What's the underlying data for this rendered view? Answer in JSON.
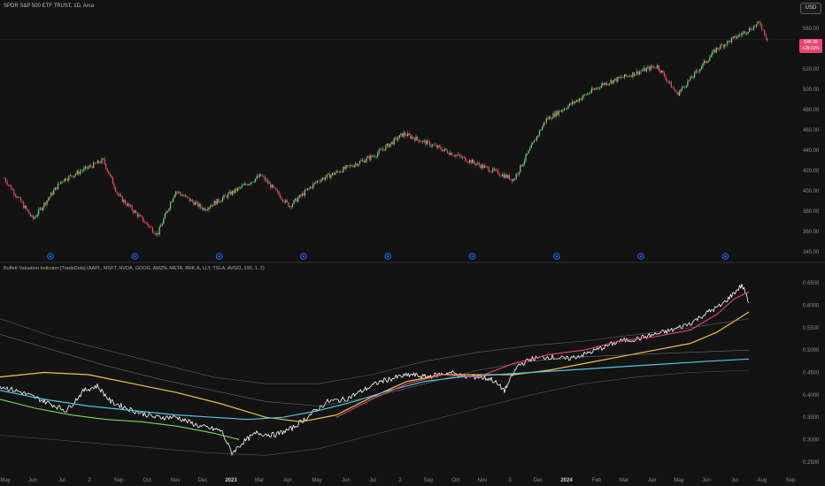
{
  "header": {
    "symbol_title": "SPDR S&P 500 ETF TRUST, 1D, Arca",
    "currency": "USD",
    "last_price": "548.99",
    "last_change": "+28.02%"
  },
  "indicator": {
    "title": "Buffett Valuation Indicator [TradeDots] (AAPL, MSFT, NVDA, GOOG, AMZN, META, BRK.A, LLY, TSLA, AVGO, 100, 1, 2)"
  },
  "colors": {
    "background": "#131313",
    "up_candle": "#7ad27a",
    "down_candle": "#e5536e",
    "ratio_line": "#ffffff",
    "ma_yellow": "#f2c14e",
    "ma_cyan": "#55c3dc",
    "ma_pink": "#e8447a",
    "ma_green": "#7ed957",
    "band_outer": "#7a7a7a",
    "event_marker": "#2962ff"
  },
  "chart_data": [
    {
      "type": "candlestick",
      "title": "SPDR S&P 500 ETF TRUST, 1D, Arca",
      "y_ticks": [
        560,
        540,
        520,
        500,
        480,
        460,
        440,
        420,
        400,
        380,
        360,
        340
      ],
      "ylim": [
        333,
        572
      ],
      "last_price": 548.99,
      "change_label": "+28.02%",
      "event_markers": 9,
      "approx_close_path": [
        {
          "x": "2022-05",
          "y": 412
        },
        {
          "x": "2022-06",
          "y": 372
        },
        {
          "x": "2022-07",
          "y": 410
        },
        {
          "x": "2022-08-15",
          "y": 430
        },
        {
          "x": "2022-09",
          "y": 395
        },
        {
          "x": "2022-10-12",
          "y": 357
        },
        {
          "x": "2022-11",
          "y": 400
        },
        {
          "x": "2022-12",
          "y": 382
        },
        {
          "x": "2023-02",
          "y": 415
        },
        {
          "x": "2023-03",
          "y": 385
        },
        {
          "x": "2023-04",
          "y": 410
        },
        {
          "x": "2023-06",
          "y": 435
        },
        {
          "x": "2023-07",
          "y": 456
        },
        {
          "x": "2023-08",
          "y": 445
        },
        {
          "x": "2023-10-27",
          "y": 411
        },
        {
          "x": "2023-12",
          "y": 470
        },
        {
          "x": "2024-02",
          "y": 505
        },
        {
          "x": "2024-03-28",
          "y": 523
        },
        {
          "x": "2024-04-19",
          "y": 495
        },
        {
          "x": "2024-06",
          "y": 540
        },
        {
          "x": "2024-07-16",
          "y": 565
        },
        {
          "x": "2024-07-24",
          "y": 548.99
        }
      ]
    },
    {
      "type": "line",
      "title": "Buffett Valuation Indicator [TradeDots] (AAPL, MSFT, NVDA, GOOG, AMZN, META, BRK.A, LLY, TSLA, AVGO, 100, 1, 2)",
      "y_ticks": [
        "0.6500",
        "0.6000",
        "0.5500",
        "0.5000",
        "0.4500",
        "0.4000",
        "0.3500",
        "0.3000",
        "0.2500"
      ],
      "ylim": [
        0.23,
        0.67
      ],
      "x_ticks": [
        "May",
        "Jun",
        "Jul",
        "2",
        "Sep",
        "Oct",
        "Nov",
        "Dec",
        "2023",
        "Mar",
        "Apr",
        "May",
        "Jun",
        "Jul",
        "2",
        "Sep",
        "Oct",
        "Nov",
        "3",
        "Dec",
        "2024",
        "Feb",
        "Mar",
        "Apr",
        "May",
        "Jun",
        "Jul",
        "Aug",
        "Sep"
      ],
      "series": [
        {
          "key": "ratio",
          "color": "#ffffff",
          "values": [
            [
              0,
              0.42
            ],
            [
              25,
              0.405
            ],
            [
              45,
              0.39
            ],
            [
              75,
              0.365
            ],
            [
              95,
              0.41
            ],
            [
              110,
              0.42
            ],
            [
              125,
              0.385
            ],
            [
              150,
              0.365
            ],
            [
              175,
              0.35
            ],
            [
              200,
              0.35
            ],
            [
              225,
              0.33
            ],
            [
              250,
              0.32
            ],
            [
              262,
              0.27
            ],
            [
              275,
              0.295
            ],
            [
              290,
              0.315
            ],
            [
              310,
              0.31
            ],
            [
              330,
              0.325
            ],
            [
              350,
              0.355
            ],
            [
              370,
              0.385
            ],
            [
              390,
              0.39
            ],
            [
              410,
              0.41
            ],
            [
              430,
              0.43
            ],
            [
              450,
              0.44
            ],
            [
              465,
              0.445
            ],
            [
              480,
              0.44
            ],
            [
              495,
              0.445
            ],
            [
              510,
              0.45
            ],
            [
              525,
              0.44
            ],
            [
              540,
              0.44
            ],
            [
              555,
              0.435
            ],
            [
              570,
              0.41
            ],
            [
              585,
              0.465
            ],
            [
              600,
              0.48
            ],
            [
              620,
              0.485
            ],
            [
              640,
              0.48
            ],
            [
              660,
              0.49
            ],
            [
              680,
              0.505
            ],
            [
              700,
              0.52
            ],
            [
              720,
              0.525
            ],
            [
              740,
              0.535
            ],
            [
              760,
              0.545
            ],
            [
              780,
              0.56
            ],
            [
              800,
              0.585
            ],
            [
              815,
              0.6
            ],
            [
              828,
              0.625
            ],
            [
              838,
              0.645
            ],
            [
              842,
              0.63
            ],
            [
              846,
              0.605
            ]
          ]
        },
        {
          "key": "ma-yellow",
          "color": "#f2c14e",
          "values": [
            [
              0,
              0.44
            ],
            [
              50,
              0.45
            ],
            [
              100,
              0.445
            ],
            [
              150,
              0.425
            ],
            [
              200,
              0.405
            ],
            [
              250,
              0.38
            ],
            [
              300,
              0.35
            ],
            [
              340,
              0.34
            ],
            [
              380,
              0.355
            ],
            [
              420,
              0.395
            ],
            [
              460,
              0.43
            ],
            [
              500,
              0.445
            ],
            [
              540,
              0.445
            ],
            [
              580,
              0.445
            ],
            [
              620,
              0.455
            ],
            [
              660,
              0.47
            ],
            [
              700,
              0.485
            ],
            [
              740,
              0.5
            ],
            [
              780,
              0.515
            ],
            [
              810,
              0.54
            ],
            [
              830,
              0.565
            ],
            [
              846,
              0.585
            ]
          ]
        },
        {
          "key": "ma-cyan",
          "color": "#55c3dc",
          "values": [
            [
              0,
              0.41
            ],
            [
              50,
              0.39
            ],
            [
              100,
              0.375
            ],
            [
              150,
              0.365
            ],
            [
              200,
              0.355
            ],
            [
              240,
              0.35
            ],
            [
              280,
              0.345
            ],
            [
              320,
              0.35
            ],
            [
              360,
              0.365
            ],
            [
              400,
              0.385
            ],
            [
              440,
              0.41
            ],
            [
              480,
              0.43
            ],
            [
              520,
              0.44
            ],
            [
              560,
              0.445
            ],
            [
              600,
              0.45
            ],
            [
              640,
              0.455
            ],
            [
              680,
              0.46
            ],
            [
              720,
              0.465
            ],
            [
              760,
              0.47
            ],
            [
              800,
              0.475
            ],
            [
              846,
              0.48
            ]
          ]
        },
        {
          "key": "ma-pink",
          "color": "#e8447a",
          "values": [
            [
              380,
              0.35
            ],
            [
              420,
              0.39
            ],
            [
              460,
              0.425
            ],
            [
              500,
              0.445
            ],
            [
              540,
              0.44
            ],
            [
              580,
              0.47
            ],
            [
              620,
              0.49
            ],
            [
              660,
              0.5
            ],
            [
              700,
              0.52
            ],
            [
              740,
              0.53
            ],
            [
              780,
              0.545
            ],
            [
              810,
              0.58
            ],
            [
              830,
              0.615
            ],
            [
              846,
              0.63
            ]
          ]
        },
        {
          "key": "ma-green",
          "color": "#7ed957",
          "values": [
            [
              0,
              0.39
            ],
            [
              40,
              0.37
            ],
            [
              80,
              0.355
            ],
            [
              120,
              0.345
            ],
            [
              160,
              0.34
            ],
            [
              200,
              0.33
            ],
            [
              240,
              0.315
            ],
            [
              270,
              0.3
            ]
          ]
        },
        {
          "key": "band-upper",
          "color": "#7a7a7a",
          "values": [
            [
              0,
              0.57
            ],
            [
              60,
              0.53
            ],
            [
              120,
              0.5
            ],
            [
              180,
              0.47
            ],
            [
              240,
              0.44
            ],
            [
              300,
              0.425
            ],
            [
              360,
              0.425
            ],
            [
              420,
              0.445
            ],
            [
              480,
              0.475
            ],
            [
              540,
              0.495
            ],
            [
              600,
              0.51
            ],
            [
              660,
              0.52
            ],
            [
              720,
              0.535
            ],
            [
              780,
              0.55
            ],
            [
              846,
              0.57
            ]
          ]
        },
        {
          "key": "band-mid",
          "color": "#8a8a8a",
          "values": [
            [
              0,
              0.535
            ],
            [
              60,
              0.5
            ],
            [
              120,
              0.465
            ],
            [
              180,
              0.435
            ],
            [
              240,
              0.41
            ],
            [
              300,
              0.385
            ],
            [
              360,
              0.375
            ],
            [
              420,
              0.395
            ],
            [
              480,
              0.425
            ],
            [
              540,
              0.455
            ],
            [
              600,
              0.475
            ],
            [
              660,
              0.485
            ],
            [
              720,
              0.49
            ],
            [
              780,
              0.495
            ],
            [
              846,
              0.5
            ]
          ]
        },
        {
          "key": "band-lower",
          "color": "#6a6a6a",
          "values": [
            [
              0,
              0.31
            ],
            [
              60,
              0.3
            ],
            [
              120,
              0.29
            ],
            [
              180,
              0.28
            ],
            [
              240,
              0.27
            ],
            [
              300,
              0.265
            ],
            [
              360,
              0.28
            ],
            [
              420,
              0.31
            ],
            [
              480,
              0.34
            ],
            [
              540,
              0.37
            ],
            [
              600,
              0.4
            ],
            [
              660,
              0.425
            ],
            [
              720,
              0.44
            ],
            [
              780,
              0.45
            ],
            [
              846,
              0.455
            ]
          ]
        }
      ]
    }
  ]
}
